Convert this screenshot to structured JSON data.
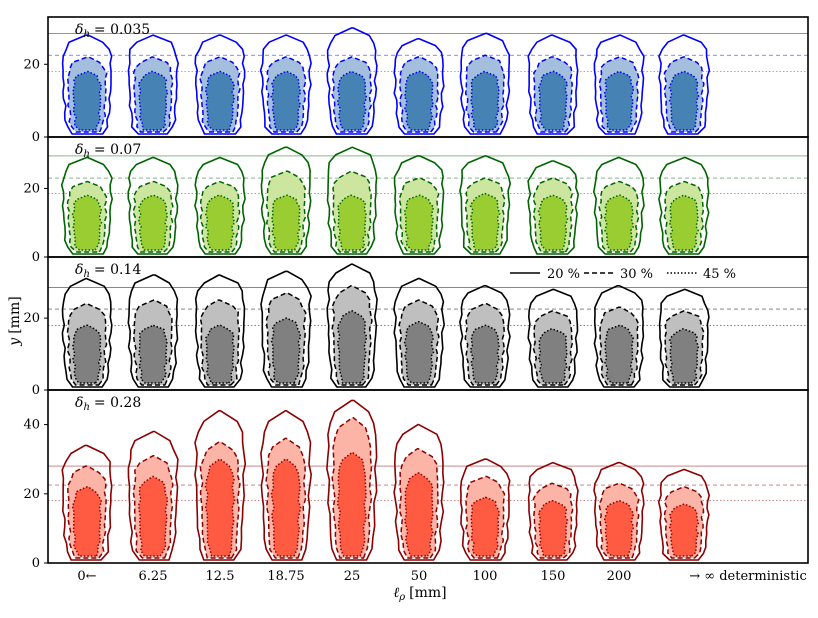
{
  "chart_data": {
    "type": "contour-panels",
    "ylabel": "y [mm]",
    "xlabel": "ℓ_ρ [mm]",
    "xlabel_parts": {
      "symbol": "ℓ",
      "subscript": "ρ",
      "unit": "[mm]"
    },
    "ylabel_parts": {
      "symbol": "y",
      "unit": "[mm]"
    },
    "categories": [
      "0←",
      "6.25",
      "12.5",
      "18.75",
      "25",
      "50",
      "100",
      "150",
      "200",
      "→ ∞ deterministic"
    ],
    "legend": [
      {
        "label": "20 %",
        "style": "solid"
      },
      {
        "label": "30 %",
        "style": "dashed"
      },
      {
        "label": "45 %",
        "style": "dotted"
      }
    ],
    "panels": [
      {
        "label": "δ_h = 0.035",
        "label_parts": {
          "symbol": "δ",
          "subscript": "h",
          "value": "= 0.035"
        },
        "stroke": "#0000ff",
        "fills": [
          "#ffffff",
          "#a3bfdd",
          "#4682b4"
        ],
        "ylim": [
          0,
          33
        ],
        "yticks": [
          0,
          20
        ],
        "hlines": [
          28.5,
          22.5,
          18.0
        ],
        "heights": [
          [
            28,
            22,
            18
          ],
          [
            28,
            22,
            18
          ],
          [
            28,
            22,
            18
          ],
          [
            28,
            22,
            18
          ],
          [
            30,
            22,
            18
          ],
          [
            27,
            22,
            18
          ],
          [
            28.5,
            22.5,
            18
          ],
          [
            28,
            22,
            18
          ],
          [
            28,
            22,
            18
          ],
          [
            28,
            22,
            18
          ]
        ]
      },
      {
        "label": "δ_h = 0.07",
        "label_parts": {
          "symbol": "δ",
          "subscript": "h",
          "value": "= 0.07"
        },
        "stroke": "#006400",
        "fills": [
          "#ffffff",
          "#cce6a0",
          "#9acd32"
        ],
        "ylim": [
          0,
          35
        ],
        "yticks": [
          0,
          20
        ],
        "hlines": [
          29.5,
          23.0,
          18.5
        ],
        "heights": [
          [
            29,
            22,
            18
          ],
          [
            29,
            22,
            18
          ],
          [
            29,
            22,
            18
          ],
          [
            32,
            25,
            18
          ],
          [
            32,
            25,
            18
          ],
          [
            29.5,
            23,
            18
          ],
          [
            29.5,
            23,
            18.5
          ],
          [
            28,
            23,
            18
          ],
          [
            29,
            22,
            18
          ],
          [
            29,
            22,
            18
          ]
        ]
      },
      {
        "label": "δ_h = 0.14",
        "label_parts": {
          "symbol": "δ",
          "subscript": "h",
          "value": "= 0.14"
        },
        "stroke": "#000000",
        "fills": [
          "#ffffff",
          "#bfbfbf",
          "#808080"
        ],
        "ylim": [
          0,
          37
        ],
        "yticks": [
          0,
          20
        ],
        "hlines": [
          28.5,
          22.5,
          18.0
        ],
        "heights": [
          [
            31,
            24,
            18
          ],
          [
            32,
            25,
            18
          ],
          [
            32,
            25,
            18
          ],
          [
            33,
            27,
            20
          ],
          [
            35,
            29,
            22
          ],
          [
            31,
            25,
            19
          ],
          [
            29,
            24,
            18
          ],
          [
            28,
            22,
            17
          ],
          [
            29,
            23,
            18
          ],
          [
            28,
            22,
            17
          ]
        ]
      },
      {
        "label": "δ_h = 0.28",
        "label_parts": {
          "symbol": "δ",
          "subscript": "h",
          "value": "= 0.28"
        },
        "stroke": "#8b0000",
        "fills": [
          "#ffffff",
          "#fcb4a6",
          "#ff5b42"
        ],
        "ylim": [
          0,
          50
        ],
        "yticks": [
          0,
          20,
          40
        ],
        "hlines": [
          28.0,
          22.5,
          18.0
        ],
        "heights": [
          [
            34,
            28,
            22
          ],
          [
            38,
            31,
            25
          ],
          [
            44,
            35,
            30
          ],
          [
            44,
            36,
            30
          ],
          [
            47,
            42,
            32
          ],
          [
            40,
            33,
            26
          ],
          [
            30,
            25,
            19
          ],
          [
            29,
            23,
            18
          ],
          [
            29,
            23,
            18
          ],
          [
            27,
            22,
            17
          ]
        ]
      }
    ]
  }
}
